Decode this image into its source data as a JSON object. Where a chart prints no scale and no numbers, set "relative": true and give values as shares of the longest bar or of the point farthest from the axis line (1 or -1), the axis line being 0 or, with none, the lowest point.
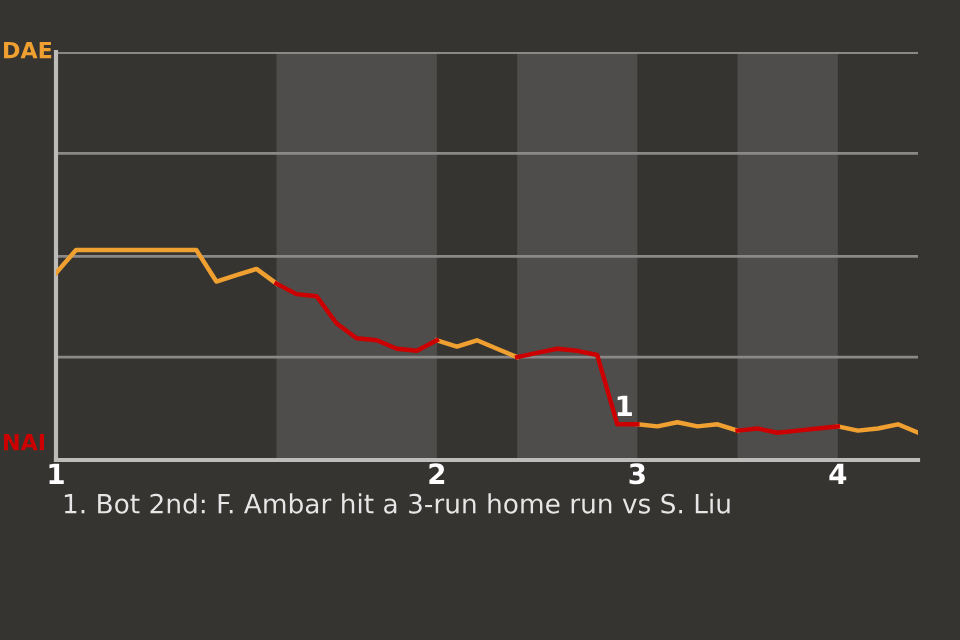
{
  "chart_data": {
    "type": "line",
    "relative": true,
    "categories": [
      "1",
      null,
      null,
      null,
      null,
      null,
      null,
      null,
      null,
      null,
      null,
      null,
      null,
      null,
      null,
      null,
      null,
      null,
      null,
      "2",
      null,
      null,
      null,
      null,
      null,
      null,
      null,
      null,
      null,
      "3",
      null,
      null,
      null,
      null,
      null,
      null,
      null,
      null,
      null,
      "4",
      null,
      null,
      null,
      null
    ],
    "marker": "none",
    "line_style": "solid",
    "ref_lines": [
      {
        "axis": "y",
        "value": 0.49,
        "color": "#8a8987"
      },
      {
        "axis": "y",
        "value": 0.97,
        "color": "#8a8987"
      },
      {
        "axis": "y",
        "value": 1.46,
        "color": "#8a8987"
      },
      {
        "axis": "y",
        "value": 1.94,
        "color": "#8a8987"
      }
    ],
    "series": [
      {
        "color": "#f0a030",
        "values": [
          0.89,
          1.0,
          1.0,
          1.0,
          1.0,
          1.0,
          1.0,
          1.0,
          0.85,
          0.88,
          0.91,
          0.84,
          null,
          null,
          null,
          null,
          null,
          null,
          null,
          0.57,
          0.54,
          0.57,
          0.53,
          0.49,
          null,
          null,
          null,
          null,
          null,
          0.17,
          0.16,
          0.18,
          0.16,
          0.17,
          0.14,
          null,
          null,
          null,
          null,
          0.16,
          0.14,
          0.15,
          0.17,
          0.13
        ]
      },
      {
        "color": "#cc0000",
        "values": [
          null,
          null,
          null,
          null,
          null,
          null,
          null,
          null,
          null,
          null,
          null,
          0.84,
          0.79,
          0.78,
          0.65,
          0.58,
          0.57,
          0.53,
          0.52,
          0.57,
          null,
          null,
          null,
          0.49,
          0.51,
          0.53,
          0.52,
          0.5,
          0.17,
          0.17,
          null,
          null,
          null,
          null,
          0.14,
          0.15,
          0.13,
          0.14,
          0.15,
          0.16,
          null,
          null,
          null,
          null
        ]
      }
    ],
    "annotations": [
      "DAE",
      "NAI",
      {
        "text": "1",
        "y": 0.17
      },
      "1. Bot 2nd: F. Ambar hit a 3-run home run vs S. Liu"
    ]
  }
}
